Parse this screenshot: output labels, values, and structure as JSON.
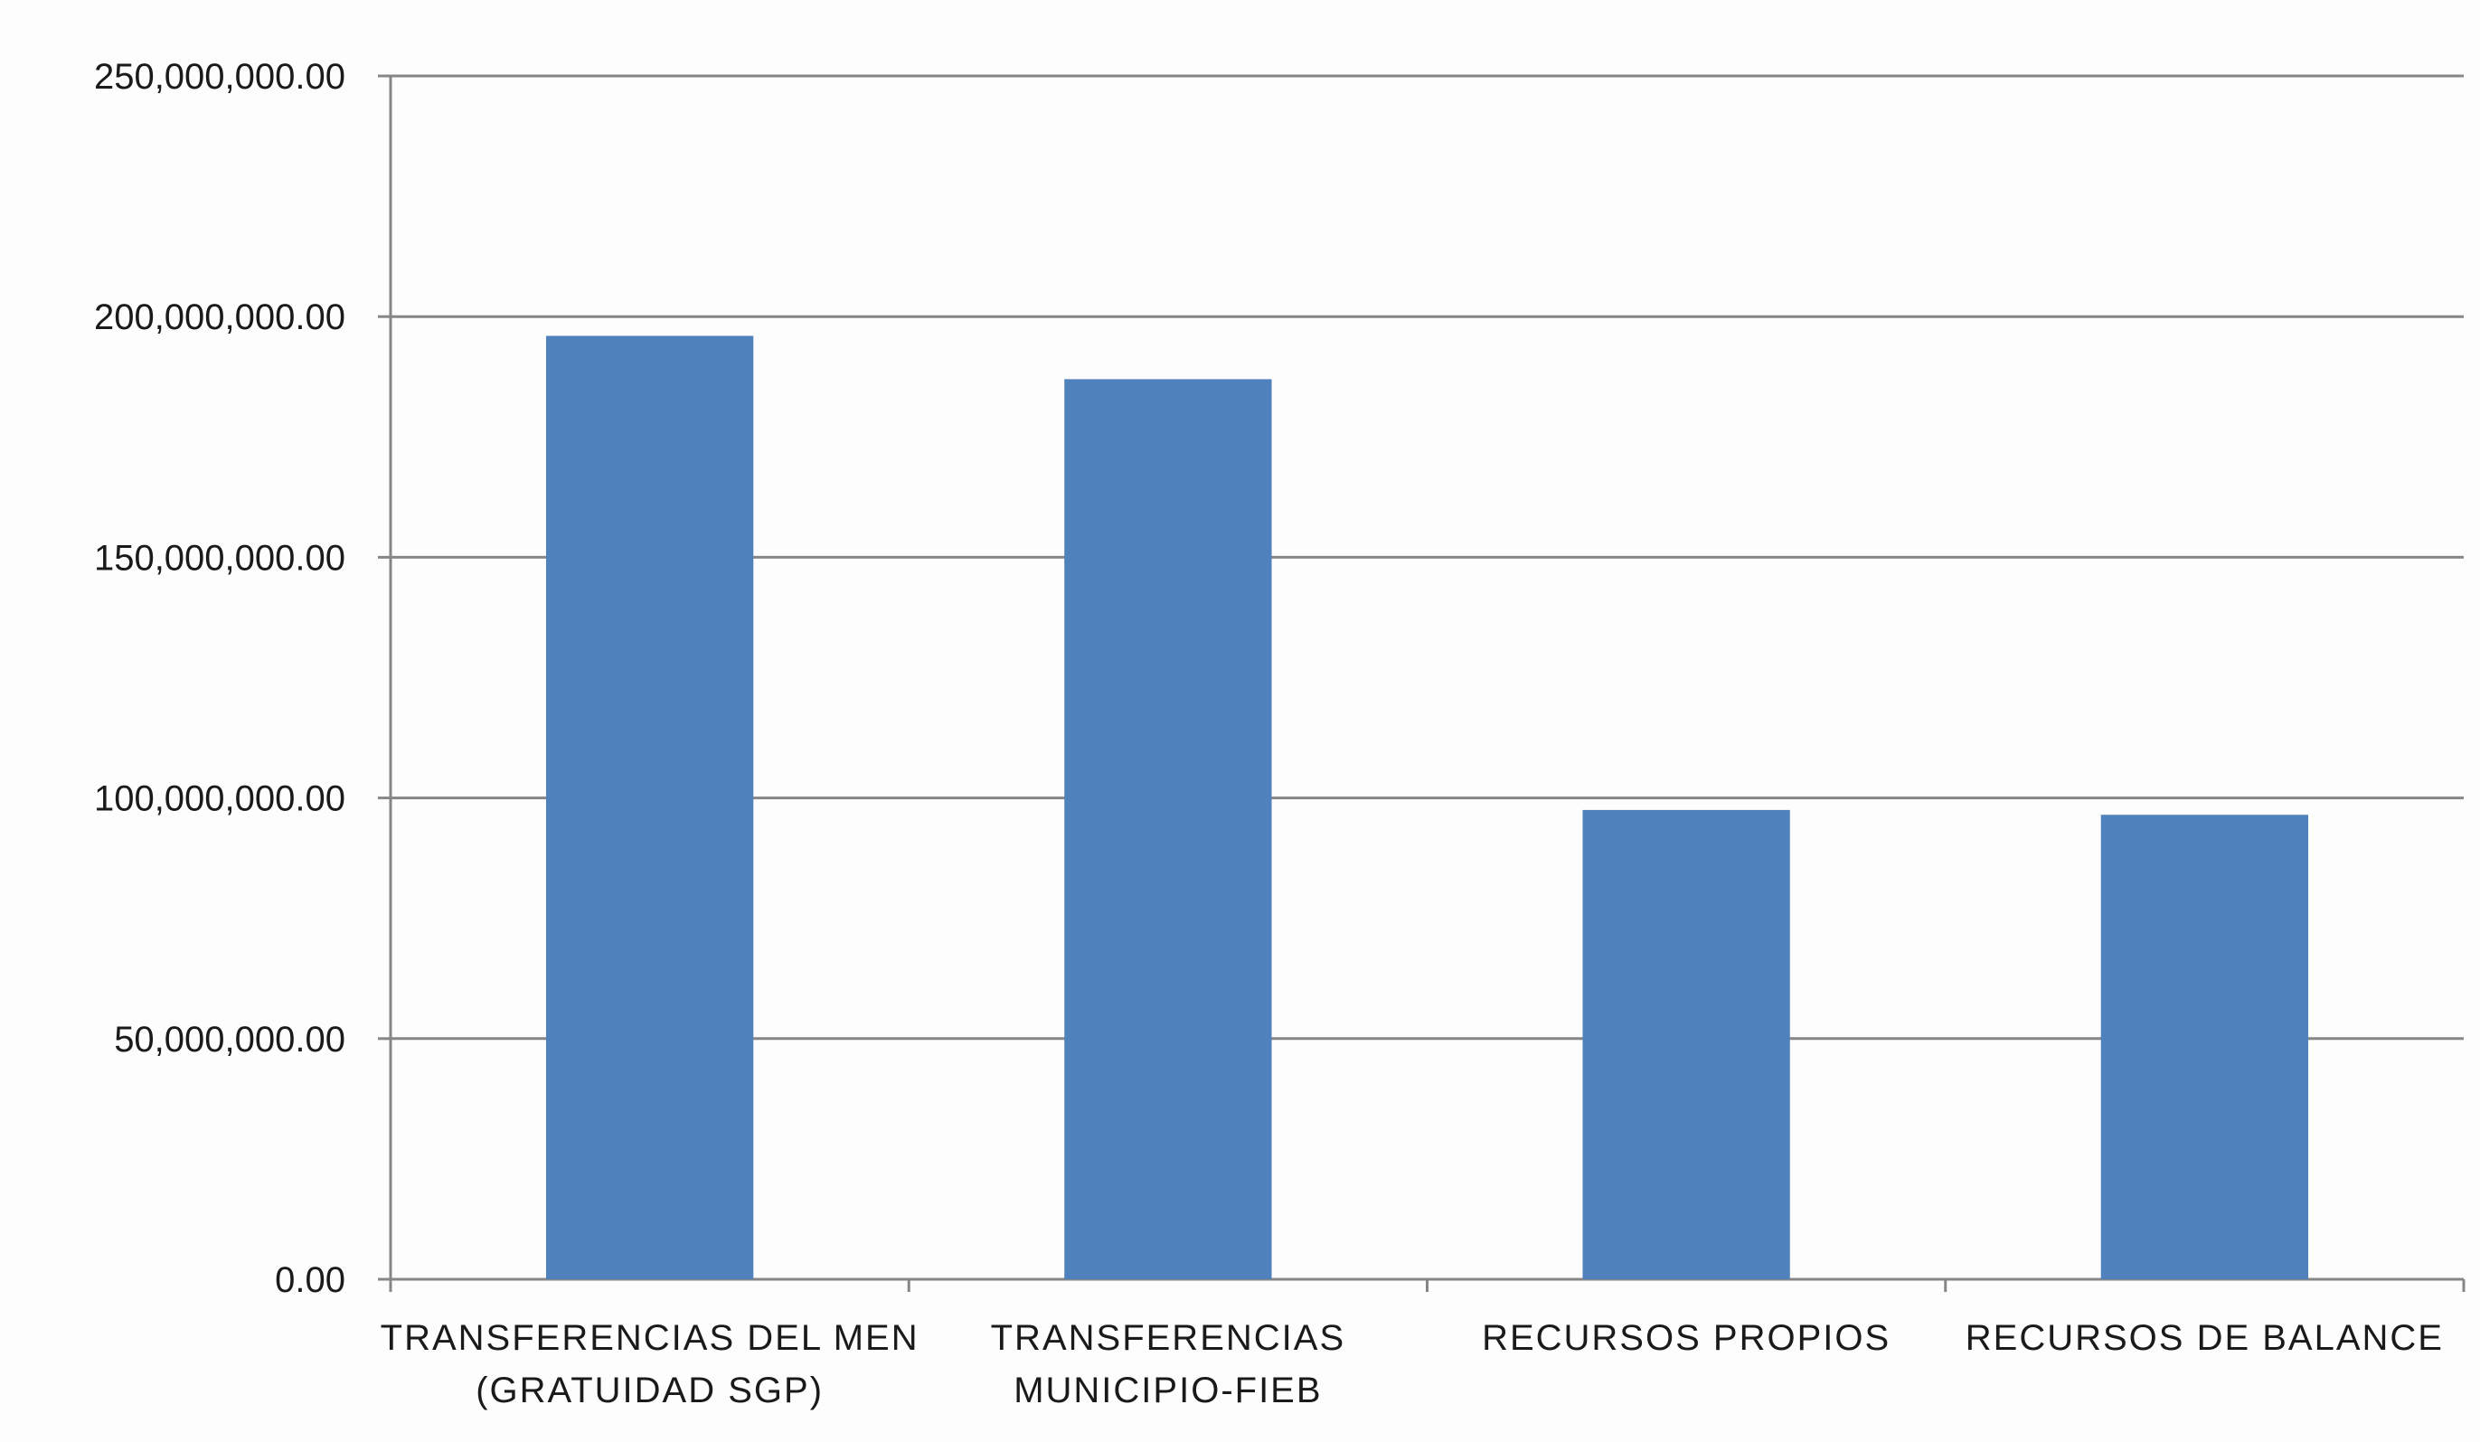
{
  "chart_data": {
    "type": "bar",
    "categories": [
      [
        "TRANSFERENCIAS DEL MEN",
        "(GRATUIDAD SGP)"
      ],
      [
        "TRANSFERENCIAS",
        "MUNICIPIO-FIEB"
      ],
      [
        "RECURSOS PROPIOS"
      ],
      [
        "RECURSOS DE BALANCE"
      ]
    ],
    "values": [
      196000000,
      187000000,
      97500000,
      96500000
    ],
    "ylim": [
      0,
      250000000
    ],
    "yticks": [
      0,
      50000000,
      100000000,
      150000000,
      200000000,
      250000000
    ],
    "ytick_labels": [
      "0.00",
      "50,000,000.00",
      "100,000,000.00",
      "150,000,000.00",
      "200,000,000.00",
      "250,000,000.00"
    ],
    "grid": true,
    "bar_color": "#4f81bd",
    "grid_color": "#868686",
    "axis_color": "#868686"
  }
}
